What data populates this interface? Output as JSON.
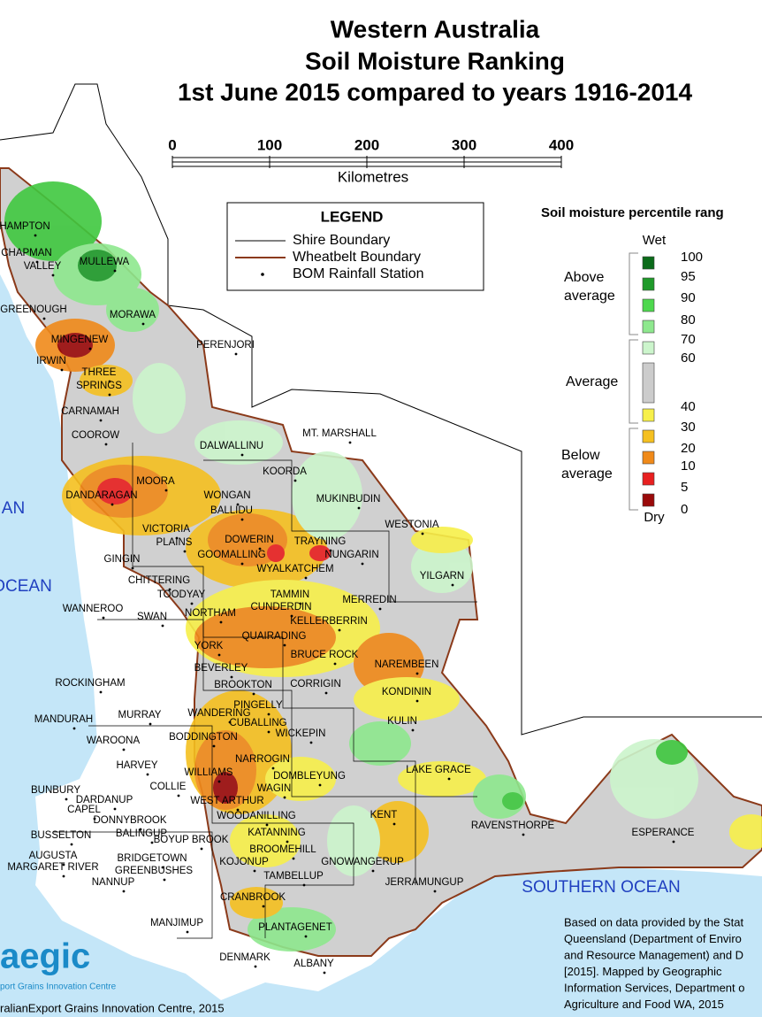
{
  "title": [
    "Western Australia",
    "Soil Moisture Ranking",
    "1st June 2015 compared to years 1916-2014"
  ],
  "scale_bar": {
    "ticks": [
      0,
      100,
      200,
      300,
      400
    ],
    "unit": "Kilometres"
  },
  "legend": {
    "title": "LEGEND",
    "items": [
      "Shire Boundary",
      "Wheatbelt Boundary",
      "BOM Rainfall Station"
    ],
    "colors": [
      "#000000",
      "#8b3a1a",
      "#000000"
    ]
  },
  "percentile_legend": {
    "title": "Soil moisture percentile rang",
    "wet": "Wet",
    "dry": "Dry",
    "groups": [
      [
        "Above",
        "average"
      ],
      [
        "Average"
      ],
      [
        "Below",
        "average"
      ]
    ],
    "values": [
      100,
      95,
      90,
      80,
      70,
      60,
      40,
      30,
      20,
      10,
      5,
      0
    ],
    "swatch_colors": [
      "#0b6b1a",
      "#1f9a2a",
      "#4ed84e",
      "#8ee88e",
      "#ccf5cc",
      "#cccccc",
      "#f7f04a",
      "#f5c020",
      "#f08a1a",
      "#e82020",
      "#9a0a0a"
    ]
  },
  "oceans": [
    "AN",
    "OCEAN",
    "SOUTHERN   OCEAN"
  ],
  "places": [
    "HAMPTON",
    "CHAPMAN",
    "VALLEY",
    "MULLEWA",
    "GREENOUGH",
    "MORAWA",
    "MINGENEW",
    "PERENJORI",
    "IRWIN",
    "THREE",
    "SPRINGS",
    "CARNAMAH",
    "COOROW",
    "DALWALLINU",
    "MT. MARSHALL",
    "KOORDA",
    "MOORA",
    "DANDARAGAN",
    "MUKINBUDIN",
    "WONGAN",
    "BALLIDU",
    "WESTONIA",
    "VICTORIA",
    "PLAINS",
    "DOWERIN",
    "TRAYNING",
    "NUNGARIN",
    "GINGIN",
    "GOOMALLING",
    "WYALKATCHEM",
    "YILGARN",
    "CHITTERING",
    "TAMMIN",
    "TOODYAY",
    "MERREDIN",
    "WANNEROO",
    "NORTHAM",
    "CUNDERDIN",
    "SWAN",
    "KELLERBERRIN",
    "QUAIRADING",
    "YORK",
    "BRUCE ROCK",
    "NAREMBEEN",
    "BEVERLEY",
    "ROCKINGHAM",
    "BROOKTON",
    "CORRIGIN",
    "KONDININ",
    "MANDURAH",
    "MURRAY",
    "WANDERING",
    "PINGELLY",
    "CUBALLING",
    "KULIN",
    "WAROONA",
    "WICKEPIN",
    "BODDINGTON",
    "HARVEY",
    "NARROGIN",
    "LAKE GRACE",
    "DOMBLEYUNG",
    "WILLIAMS",
    "COLLIE",
    "WAGIN",
    "BUNBURY",
    "DARDANUP",
    "WEST ARTHUR",
    "CAPEL",
    "KENT",
    "DONNYBROOK",
    "WOODANILLING",
    "RAVENSTHORPE",
    "BALINGUP",
    "ESPERANCE",
    "BUSSELTON",
    "BOYUP BROOK",
    "KATANNING",
    "AUGUSTA",
    "MARGARET RIVER",
    "BRIDGETOWN",
    "KOJONUP",
    "BROOMEHILL",
    "GNOWANGERUP",
    "GREENBUSHES",
    "NANNUP",
    "TAMBELLUP",
    "JERRAMUNGUP",
    "CRANBROOK",
    "MANJIMUP",
    "PLANTAGENET",
    "DENMARK",
    "ALBANY"
  ],
  "note": [
    "Based on data provided by the Stat",
    "Queensland (Department of Enviro",
    "and Resource Management) and D",
    "[2015].  Mapped by Geographic",
    "Information Services, Department o",
    "Agriculture and Food WA, 2015"
  ],
  "logo": {
    "name": "aegic",
    "tagline": "port Grains Innovation Centre"
  },
  "credit": "ralianExport Grains Innovation Centre, 2015"
}
